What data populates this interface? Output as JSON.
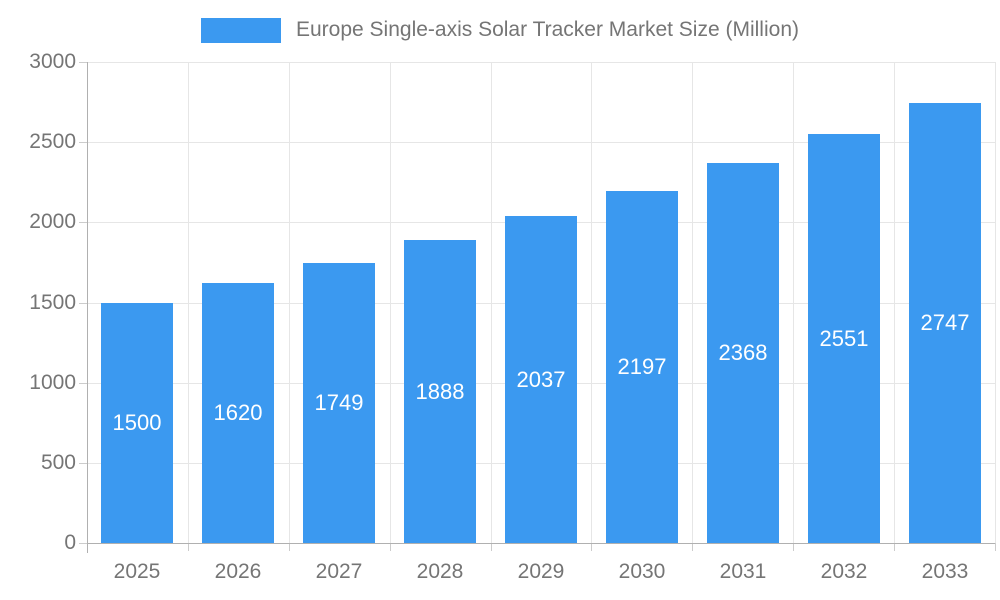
{
  "chart_data": {
    "type": "bar",
    "title": "Europe Single-axis Solar Tracker Market Size (Million)",
    "categories": [
      "2025",
      "2026",
      "2027",
      "2028",
      "2029",
      "2030",
      "2031",
      "2032",
      "2033"
    ],
    "values": [
      1500,
      1620,
      1749,
      1888,
      2037,
      2197,
      2368,
      2551,
      2747
    ],
    "ylim": [
      0,
      3000
    ],
    "yticks": [
      0,
      500,
      1000,
      1500,
      2000,
      2500,
      3000
    ],
    "xlabel": "",
    "ylabel": "",
    "legend_position": "top-center",
    "grid": "on",
    "colors": {
      "bar": "#3B99F0",
      "axis_text": "#757575",
      "legend_text": "#757575",
      "gridline": "#e6e6e6",
      "tick": "#cccccc",
      "axis_line": "#b0b0b0",
      "value_label": "#ffffff",
      "background": "#ffffff"
    }
  }
}
